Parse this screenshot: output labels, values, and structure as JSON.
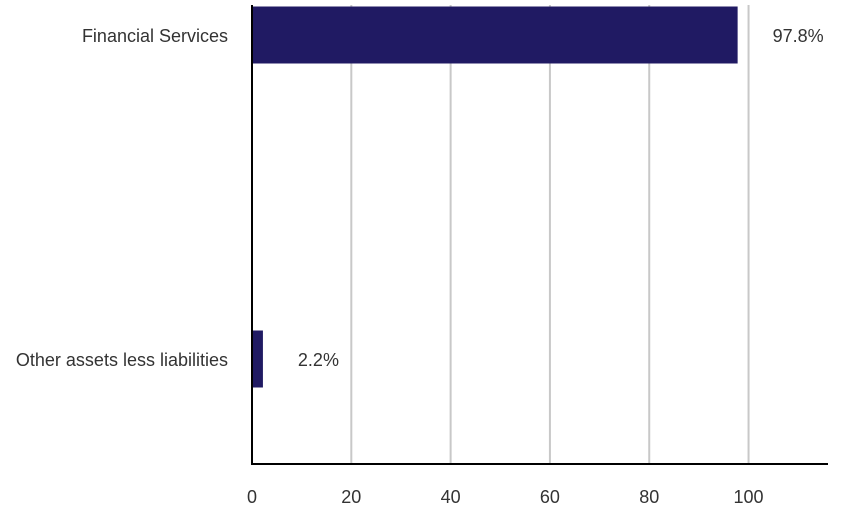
{
  "chart_data": {
    "type": "bar",
    "orientation": "horizontal",
    "categories": [
      "Financial Services",
      "Other assets less liabilities"
    ],
    "values": [
      97.8,
      2.2
    ],
    "data_labels": [
      "97.8%",
      "2.2%"
    ],
    "x_ticks": [
      0,
      20,
      40,
      60,
      80,
      100
    ],
    "xlim": [
      0,
      116
    ],
    "grid": "vertical",
    "bar_color": "#201a63",
    "title": "",
    "xlabel": "",
    "ylabel": ""
  }
}
